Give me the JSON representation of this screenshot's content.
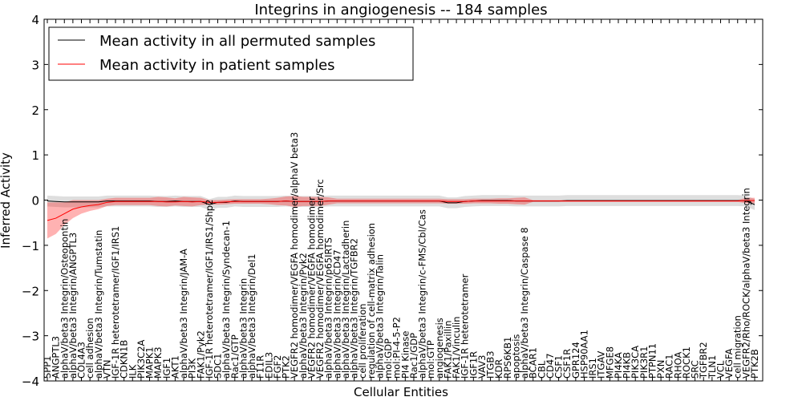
{
  "chart_data": {
    "type": "line",
    "title": "Integrins in angiogenesis -- 184 samples",
    "xlabel": "Cellular Entities",
    "ylabel": "Inferred Activity",
    "ylim": [
      -4,
      4
    ],
    "yticks": [
      "4",
      "3",
      "2",
      "1",
      "0",
      "−1",
      "−2",
      "−3",
      "−4"
    ],
    "grid": false,
    "legend_position": "top-left",
    "categories": [
      "SPP1",
      "ANGPTL3",
      "alphaV/beta3 Integrin/Osteopontin",
      "alphaV/beta3 Integrin/ANGPTL3",
      "COL4A3",
      "cell adhesion",
      "alphaV/beta3 Integrin/Tumstatin",
      "VTN",
      "IGF-1R heterotetramer/IGF1/IRS1",
      "CDKN1B",
      "ILK",
      "PIK3C2A",
      "MAPK1",
      "MAPK3",
      "IGF1",
      "AKT1",
      "alphaV/beta3 Integrin/JAM-A",
      "PI3K",
      "FAK1/Pyk2",
      "IGF-1R heterotetramer/IGF1/IRS1/Shp2",
      "SDC1",
      "alphaV/beta3 Integrin/Syndecan-1",
      "Rac1/GTP",
      "alphaV/beta3 Integrin",
      "alphaV/beta3 Integrin/Del1",
      "F11R",
      "EDIL3",
      "FGF2",
      "PTK2",
      "VEGFR2 homodimer/VEGFA homodimer/alphaV beta3",
      "alphaV/beta3 Integrin/Pyk2",
      "VEGFR2 homodimer/VEGFA homodimer",
      "VEGFR2 homodimer/VEGFA homodimer/Src",
      "alphaV/beta3 Integrin/p65IRTS",
      "alphaV/beta3 Integrin/CD47",
      "alphaV/beta3 Integrin/Lactadherin",
      "alphaV/beta3 Integrin/TGFBR2",
      "cell proliferation",
      "regulation of cell-matrix adhesion",
      "alphaV/beta3 Integrin/Talin",
      "mol:GDP",
      "mol:PI-4-5-P2",
      "PI4 Kinase",
      "Rac1/GDP",
      "alphaV/beta3 Integrin/c-FMS/Cbl/Cas",
      "mol:GTP",
      "angiogenesis",
      "FAK1/Paxillin",
      "FAK1/Vinculin",
      "IGF-1R heterotetramer",
      "IGF1R",
      "VAV3",
      "ITGB3",
      "KDR",
      "RPS6KB1",
      "apoptosis",
      "alphaV/beta3 Integrin/Caspase 8",
      "BCAR1",
      "CBL",
      "CD47",
      "CSF1",
      "CSF1R",
      "GPR124",
      "HSP90AA1",
      "IRS1",
      "ITGAV",
      "MFGE8",
      "PI4KA",
      "PI4KB",
      "PIK3CA",
      "PIK3R1",
      "PTPN11",
      "PXN",
      "RAC1",
      "RHOA",
      "ROCK1",
      "SRC",
      "TGFBR2",
      "TLN1",
      "VCL",
      "VEGFA",
      "cell migration",
      "VEGFR2/Rho/ROCK/alphaV/beta3 Integrin",
      "PTK2B"
    ],
    "series": [
      {
        "name": "Mean activity in all permuted samples",
        "color": "#000000",
        "values": [
          -0.02,
          -0.03,
          -0.04,
          -0.04,
          -0.04,
          -0.04,
          -0.04,
          -0.02,
          -0.02,
          -0.02,
          -0.02,
          -0.02,
          -0.02,
          -0.03,
          -0.03,
          -0.02,
          -0.03,
          -0.03,
          -0.03,
          -0.1,
          -0.05,
          -0.05,
          -0.02,
          -0.03,
          -0.03,
          -0.03,
          -0.03,
          -0.03,
          -0.02,
          -0.03,
          -0.03,
          -0.03,
          -0.03,
          -0.02,
          -0.02,
          -0.02,
          -0.02,
          -0.02,
          -0.02,
          -0.02,
          -0.02,
          -0.02,
          -0.02,
          -0.02,
          -0.02,
          -0.02,
          -0.02,
          -0.06,
          -0.06,
          -0.03,
          -0.02,
          -0.01,
          -0.01,
          -0.01,
          -0.01,
          -0.02,
          -0.02,
          -0.02,
          -0.02,
          -0.02,
          -0.02,
          -0.01,
          -0.01,
          -0.01,
          -0.01,
          -0.01,
          -0.01,
          -0.01,
          -0.01,
          -0.01,
          -0.01,
          -0.01,
          -0.01,
          -0.01,
          -0.01,
          -0.01,
          -0.01,
          -0.01,
          -0.01,
          -0.01,
          -0.01,
          -0.01,
          -0.02,
          -0.1
        ]
      },
      {
        "name": "Mean activity in patient samples",
        "color": "#ff0000",
        "values": [
          -0.45,
          -0.4,
          -0.3,
          -0.2,
          -0.15,
          -0.12,
          -0.1,
          -0.05,
          -0.03,
          -0.03,
          -0.03,
          -0.03,
          -0.03,
          -0.03,
          -0.04,
          -0.04,
          -0.03,
          -0.04,
          -0.03,
          -0.05,
          -0.05,
          -0.04,
          -0.03,
          -0.03,
          -0.03,
          -0.03,
          -0.03,
          -0.03,
          -0.02,
          -0.03,
          -0.03,
          -0.03,
          -0.03,
          -0.02,
          -0.02,
          -0.02,
          -0.02,
          -0.02,
          -0.02,
          -0.02,
          -0.02,
          -0.02,
          -0.02,
          -0.02,
          -0.02,
          -0.02,
          -0.02,
          -0.03,
          -0.03,
          -0.03,
          -0.02,
          -0.02,
          -0.02,
          -0.02,
          -0.02,
          -0.02,
          -0.02,
          -0.02,
          -0.02,
          -0.02,
          -0.02,
          -0.02,
          -0.02,
          -0.02,
          -0.02,
          -0.02,
          -0.02,
          -0.02,
          -0.02,
          -0.02,
          -0.02,
          -0.02,
          -0.02,
          -0.02,
          -0.02,
          -0.02,
          -0.02,
          -0.02,
          -0.02,
          -0.02,
          -0.02,
          -0.02,
          -0.01,
          -0.01
        ],
        "spread": [
          0.4,
          0.35,
          0.25,
          0.2,
          0.15,
          0.12,
          0.1,
          0.08,
          0.08,
          0.08,
          0.08,
          0.08,
          0.08,
          0.1,
          0.1,
          0.08,
          0.1,
          0.1,
          0.08,
          0.05,
          0.05,
          0.05,
          0.05,
          0.05,
          0.05,
          0.05,
          0.06,
          0.08,
          0.1,
          0.12,
          0.1,
          0.1,
          0.1,
          0.08,
          0.05,
          0.05,
          0.05,
          0.05,
          0.05,
          0.05,
          0.05,
          0.05,
          0.05,
          0.05,
          0.05,
          0.05,
          0.05,
          0.05,
          0.05,
          0.05,
          0.05,
          0.05,
          0.05,
          0.06,
          0.06,
          0.07,
          0.08,
          0.02,
          0.02,
          0.02,
          0.02,
          0.02,
          0.02,
          0.02,
          0.02,
          0.02,
          0.02,
          0.02,
          0.02,
          0.02,
          0.02,
          0.02,
          0.02,
          0.02,
          0.02,
          0.02,
          0.02,
          0.02,
          0.02,
          0.02,
          0.02,
          0.02,
          0.06,
          0.06
        ]
      }
    ],
    "permuted_spread": 0.12
  }
}
